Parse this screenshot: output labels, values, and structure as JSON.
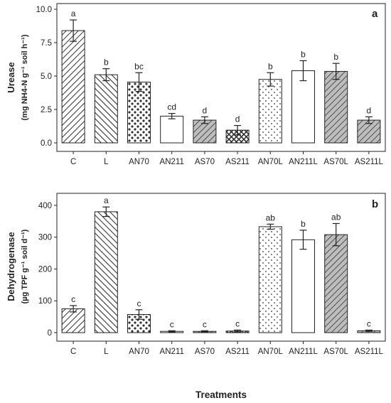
{
  "chart_data": [
    {
      "type": "bar",
      "panel_label": "a",
      "ylabel": "Urease",
      "ylabel_units": "(mg NH4-N g⁻¹ soil h⁻¹)",
      "categories": [
        "C",
        "L",
        "AN70",
        "AN211",
        "AS70",
        "AS211",
        "AN70L",
        "AN211L",
        "AS70L",
        "AS211L"
      ],
      "values": [
        8.4,
        5.1,
        4.55,
        2.0,
        1.7,
        0.95,
        4.75,
        5.4,
        5.35,
        1.7
      ],
      "errors": [
        0.8,
        0.45,
        0.7,
        0.2,
        0.25,
        0.35,
        0.5,
        0.75,
        0.6,
        0.25
      ],
      "letters": [
        "a",
        "b",
        "bc",
        "cd",
        "d",
        "d",
        "b",
        "b",
        "b",
        "d"
      ],
      "yticks": [
        "0.0",
        "2.5",
        "5.0",
        "7.5",
        "10.0"
      ],
      "ylim": [
        0,
        10
      ],
      "grid": false
    },
    {
      "type": "bar",
      "panel_label": "b",
      "ylabel": "Dehydrogenase",
      "ylabel_units": "(µg TPF g⁻¹ soil d⁻¹)",
      "categories": [
        "C",
        "L",
        "AN70",
        "AN211",
        "AS70",
        "AS211",
        "AN70L",
        "AN211L",
        "AS70L",
        "AS211L"
      ],
      "values": [
        75,
        380,
        57,
        4,
        4,
        5,
        333,
        292,
        308,
        6
      ],
      "errors": [
        10,
        15,
        15,
        2,
        2,
        3,
        8,
        30,
        35,
        2
      ],
      "letters": [
        "c",
        "a",
        "c",
        "c",
        "c",
        "c",
        "ab",
        "b",
        "ab",
        "c"
      ],
      "yticks": [
        "0",
        "100",
        "200",
        "300",
        "400"
      ],
      "ylim": [
        0,
        420
      ],
      "grid": false
    }
  ],
  "xlabel": "Treatments",
  "patterns": [
    "diag-dense",
    "diag-back",
    "dots-big",
    "empty",
    "diag-grey",
    "crosshatch",
    "dots-small",
    "empty",
    "diag-grey",
    "diag-grey"
  ],
  "colors": {
    "axis": "#222222",
    "bar_stroke": "#222222",
    "grey_fill": "#bdbdbd"
  }
}
